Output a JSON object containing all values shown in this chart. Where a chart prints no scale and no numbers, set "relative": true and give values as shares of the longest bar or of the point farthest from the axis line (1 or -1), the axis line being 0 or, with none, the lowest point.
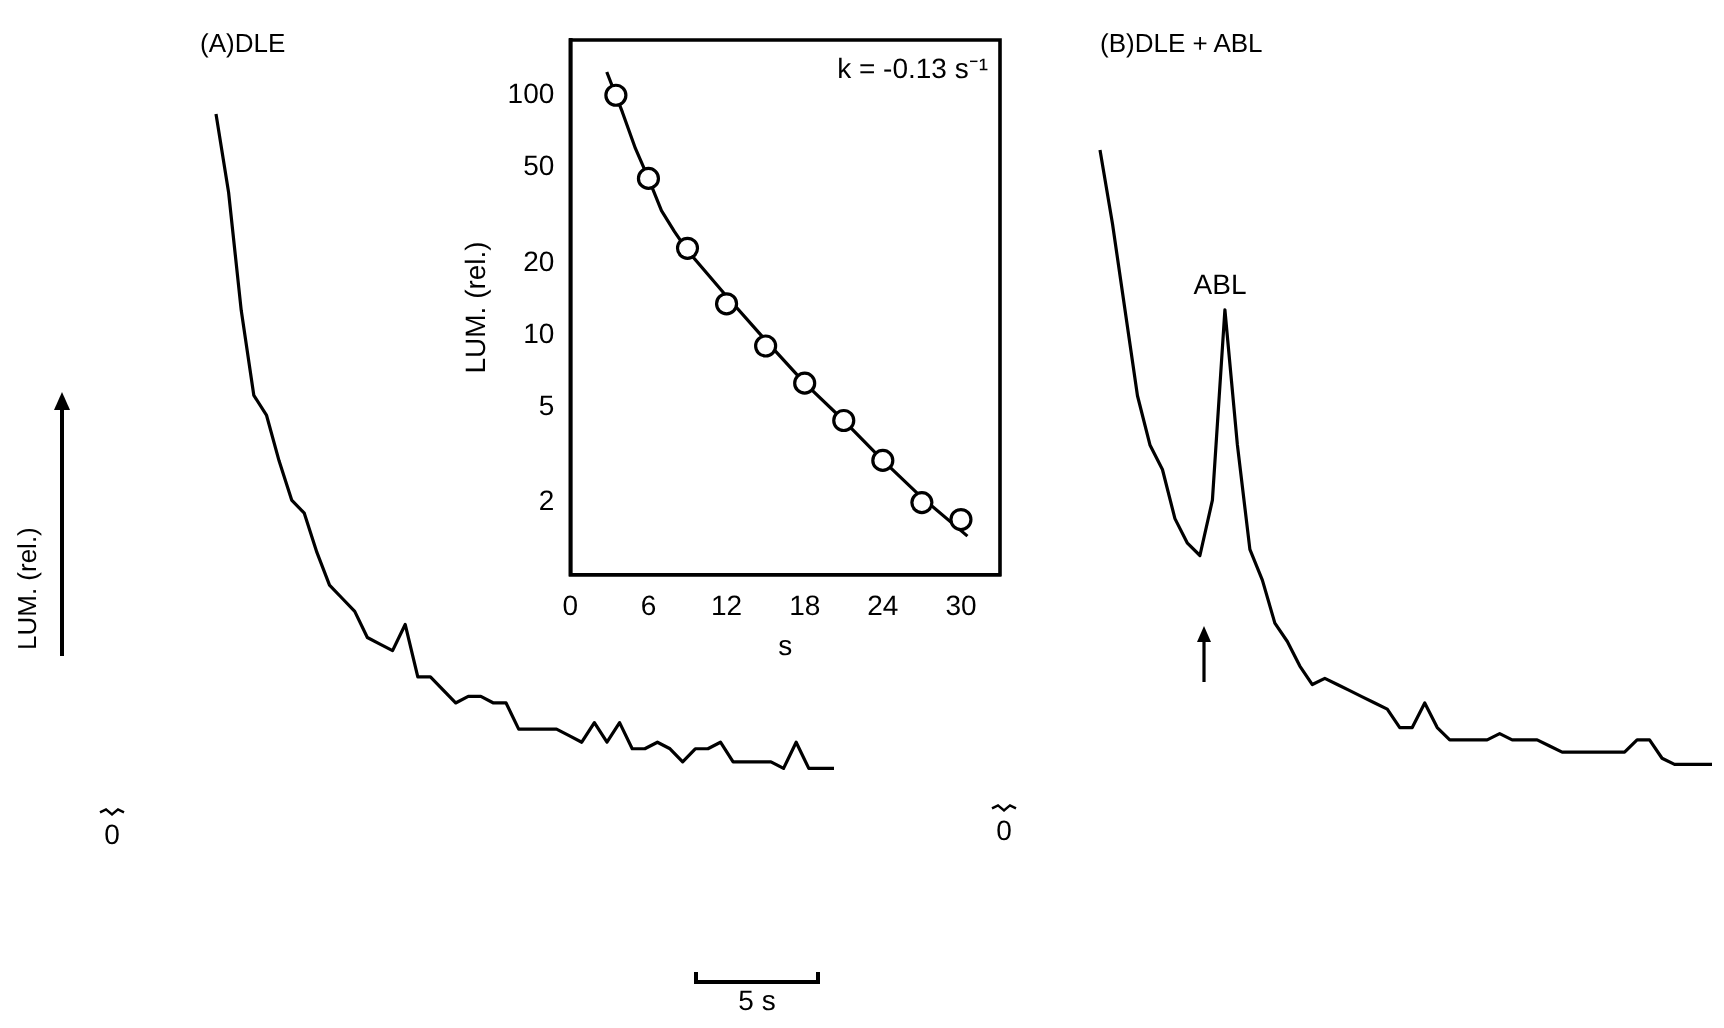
{
  "chart_data": [
    {
      "type": "line",
      "title": "(A)DLE",
      "ylabel": "LUM. (rel.)",
      "relative": true,
      "color": "#000000",
      "annotations": [
        "0",
        "5 s"
      ],
      "categories": [
        null,
        null,
        null,
        null,
        null,
        null,
        null,
        null,
        null,
        null,
        null,
        null,
        null,
        null,
        null,
        null,
        null,
        null,
        null,
        null,
        null,
        null,
        null,
        null,
        null,
        null,
        null,
        null,
        null,
        null,
        null,
        null,
        null,
        null,
        null,
        null,
        null,
        null,
        null,
        null,
        null,
        null,
        null,
        null,
        null,
        null,
        null,
        null,
        null,
        null
      ],
      "values": [
        1,
        0.88,
        0.7,
        0.57,
        0.54,
        0.47,
        0.41,
        0.39,
        0.33,
        0.28,
        0.26,
        0.24,
        0.2,
        0.19,
        0.18,
        0.22,
        0.14,
        0.14,
        0.12,
        0.1,
        0.11,
        0.11,
        0.1,
        0.1,
        0.06,
        0.06,
        0.06,
        0.06,
        0.05,
        0.04,
        0.07,
        0.04,
        0.07,
        0.03,
        0.03,
        0.04,
        0.03,
        0.01,
        0.03,
        0.03,
        0.04,
        0.01,
        0.01,
        0.01,
        0.01,
        0,
        0.04,
        0,
        0,
        0
      ]
    },
    {
      "type": "scatter",
      "xlabel": "s",
      "ylabel": "LUM. (rel.)",
      "log": "y",
      "xlim": [
        0,
        33
      ],
      "xticks": [
        0,
        6,
        12,
        18,
        24,
        30
      ],
      "ylim": [
        1,
        170
      ],
      "yticks": [
        2,
        5,
        10,
        20,
        50,
        100
      ],
      "annotations": [
        "k = -0.13 s⁻¹"
      ],
      "series": [
        {
          "marker": "circle",
          "color": "#000000",
          "x": [
            3.5,
            6,
            9,
            12,
            15,
            18,
            21,
            24,
            27,
            30
          ],
          "values": [
            100,
            45,
            23,
            13.5,
            9,
            6.3,
            4.4,
            3,
            2,
            1.7
          ]
        },
        {
          "type": "line",
          "marker": "none",
          "color": "#000000",
          "x": [
            2.8,
            4,
            5,
            6,
            7,
            8,
            9,
            12,
            15,
            18,
            21,
            24,
            27,
            30.5
          ],
          "values": [
            125,
            85,
            60,
            45,
            33,
            27,
            22.5,
            14.5,
            9.5,
            6.3,
            4.4,
            3,
            2.1,
            1.45
          ]
        }
      ]
    },
    {
      "type": "line",
      "title": "(B)DLE + ABL",
      "relative": true,
      "color": "#000000",
      "annotations": [
        "ABL",
        "0"
      ],
      "categories": [
        null,
        null,
        null,
        null,
        null,
        null,
        null,
        null,
        null,
        null,
        null,
        null,
        null,
        null,
        null,
        null,
        null,
        null,
        null,
        null,
        null,
        null,
        null,
        null,
        null,
        null,
        null,
        null,
        null,
        null,
        null,
        null,
        null,
        null,
        null,
        null,
        null,
        null,
        null,
        null,
        null,
        null,
        null,
        null,
        null,
        null,
        null,
        null,
        null,
        null
      ],
      "values": [
        1,
        0.88,
        0.74,
        0.6,
        0.52,
        0.48,
        0.4,
        0.36,
        0.34,
        0.43,
        0.74,
        0.52,
        0.35,
        0.3,
        0.23,
        0.2,
        0.16,
        0.13,
        0.14,
        0.13,
        0.12,
        0.11,
        0.1,
        0.09,
        0.06,
        0.06,
        0.1,
        0.06,
        0.04,
        0.04,
        0.04,
        0.04,
        0.05,
        0.04,
        0.04,
        0.04,
        0.03,
        0.02,
        0.02,
        0.02,
        0.02,
        0.02,
        0.02,
        0.04,
        0.04,
        0.01,
        0,
        0,
        0,
        0
      ]
    }
  ]
}
